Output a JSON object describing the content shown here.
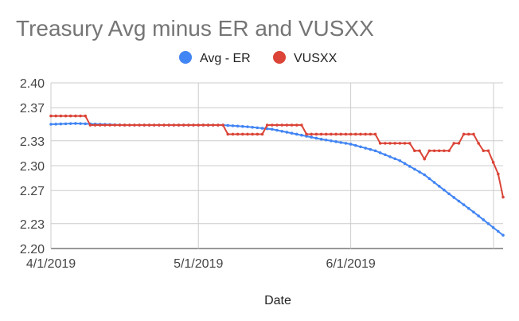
{
  "chart_data": {
    "type": "line",
    "title": "Treasury Avg minus ER and VUSXX",
    "xlabel": "Date",
    "ylabel": "",
    "ylim": [
      2.2,
      2.4
    ],
    "yticks": [
      "2.20",
      "2.23",
      "2.27",
      "2.30",
      "2.33",
      "2.37",
      "2.40"
    ],
    "xticks": [
      "4/1/2019",
      "5/1/2019",
      "6/1/2019"
    ],
    "x_range": [
      "2019-04-01",
      "2019-07-02"
    ],
    "grid": true,
    "legend": "top",
    "series": [
      {
        "name": "Avg - ER",
        "color": "#4285f4",
        "x": [
          "2019-04-01",
          "2019-04-06",
          "2019-04-11",
          "2019-04-16",
          "2019-04-21",
          "2019-04-26",
          "2019-05-01",
          "2019-05-06",
          "2019-05-11",
          "2019-05-16",
          "2019-05-21",
          "2019-05-26",
          "2019-06-01",
          "2019-06-06",
          "2019-06-11",
          "2019-06-16",
          "2019-06-21",
          "2019-06-26",
          "2019-07-02"
        ],
        "values": [
          2.35,
          2.351,
          2.35,
          2.349,
          2.349,
          2.349,
          2.349,
          2.349,
          2.347,
          2.344,
          2.338,
          2.332,
          2.326,
          2.318,
          2.306,
          2.289,
          2.266,
          2.244,
          2.216
        ]
      },
      {
        "name": "VUSXX",
        "color": "#db4437",
        "x": [
          "2019-04-01",
          "2019-04-08",
          "2019-04-09",
          "2019-04-30",
          "2019-05-06",
          "2019-05-07",
          "2019-05-14",
          "2019-05-15",
          "2019-05-22",
          "2019-05-23",
          "2019-06-06",
          "2019-06-07",
          "2019-06-13",
          "2019-06-14",
          "2019-06-15",
          "2019-06-16",
          "2019-06-17",
          "2019-06-18",
          "2019-06-21",
          "2019-06-22",
          "2019-06-23",
          "2019-06-24",
          "2019-06-26",
          "2019-06-27",
          "2019-06-28",
          "2019-06-29",
          "2019-07-01",
          "2019-07-02"
        ],
        "values": [
          2.36,
          2.36,
          2.349,
          2.349,
          2.349,
          2.338,
          2.338,
          2.349,
          2.349,
          2.338,
          2.338,
          2.327,
          2.327,
          2.318,
          2.318,
          2.308,
          2.318,
          2.318,
          2.318,
          2.327,
          2.327,
          2.338,
          2.338,
          2.327,
          2.318,
          2.318,
          2.29,
          2.262
        ]
      }
    ]
  }
}
